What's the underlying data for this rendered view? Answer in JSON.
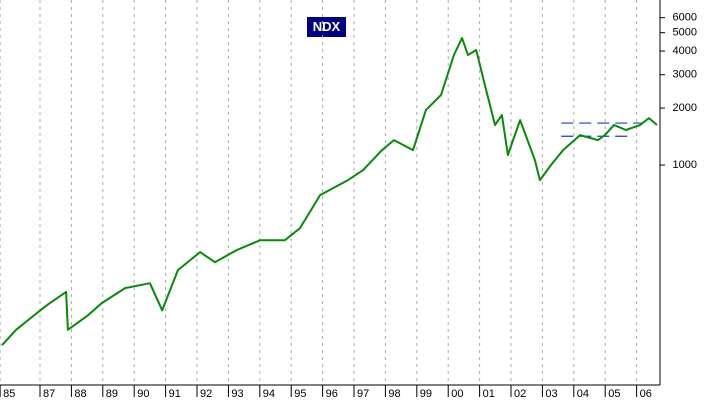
{
  "chart_data": {
    "type": "line",
    "title": "NDX",
    "log_y": true,
    "grid": true,
    "series": [
      {
        "name": "NDX",
        "color": "#0a8a0a",
        "x": [
          1985.79,
          1986.24,
          1986.71,
          1987.22,
          1987.83,
          1987.89,
          1988.53,
          1988.97,
          1989.71,
          1990.5,
          1990.89,
          1991.39,
          1992.1,
          1992.57,
          1993.27,
          1994.01,
          1994.8,
          1995.28,
          1995.92,
          1996.81,
          1997.29,
          1997.89,
          1998.27,
          1998.88,
          1999.29,
          1999.77,
          2000.18,
          2000.44,
          2000.63,
          2000.89,
          2001.17,
          2001.49,
          2001.71,
          2001.9,
          2002.29,
          2002.76,
          2002.92,
          2003.27,
          2003.66,
          2004.2,
          2004.77,
          2004.99,
          2005.28,
          2005.66,
          2006.11,
          2006.39,
          2006.65
        ],
        "values": [
          112,
          135,
          156,
          182,
          214,
          135,
          161,
          187,
          224,
          238,
          171,
          279,
          347,
          307,
          356,
          401,
          401,
          465,
          694,
          833,
          941,
          1200,
          1355,
          1200,
          1951,
          2343,
          3810,
          4680,
          3810,
          4050,
          2645,
          1627,
          1838,
          1130,
          1728,
          1063,
          833,
          1000,
          1200,
          1440,
          1355,
          1440,
          1627,
          1531,
          1627,
          1770,
          1627
        ]
      }
    ],
    "reference_lines": [
      {
        "value": 1667,
        "x": [
          2003.6,
          2006.2
        ],
        "color": "#1a3cc8"
      },
      {
        "value": 1420,
        "x": [
          2003.6,
          2005.9
        ],
        "color": "#1a3cc8"
      }
    ],
    "xlim": [
      1985.726,
      2006.745
    ],
    "xticks": [
      {
        "value": 1985.73,
        "label": "85"
      },
      {
        "value": 1987,
        "label": "87"
      },
      {
        "value": 1988,
        "label": "88"
      },
      {
        "value": 1989,
        "label": "89"
      },
      {
        "value": 1990,
        "label": "90"
      },
      {
        "value": 1991,
        "label": "91"
      },
      {
        "value": 1992,
        "label": "92"
      },
      {
        "value": 1993,
        "label": "93"
      },
      {
        "value": 1994,
        "label": "94"
      },
      {
        "value": 1995,
        "label": "95"
      },
      {
        "value": 1996,
        "label": "96"
      },
      {
        "value": 1997,
        "label": "97"
      },
      {
        "value": 1998,
        "label": "98"
      },
      {
        "value": 1999,
        "label": "99"
      },
      {
        "value": 2000,
        "label": "00"
      },
      {
        "value": 2001,
        "label": "01"
      },
      {
        "value": 2002,
        "label": "02"
      },
      {
        "value": 2003,
        "label": "03"
      },
      {
        "value": 2004,
        "label": "04"
      },
      {
        "value": 2005,
        "label": "05"
      },
      {
        "value": 2006,
        "label": "06"
      }
    ],
    "ylim": [
      70.7,
      7440
    ],
    "yticks": [
      1000,
      2000,
      3000,
      4000,
      5000,
      6000
    ]
  }
}
